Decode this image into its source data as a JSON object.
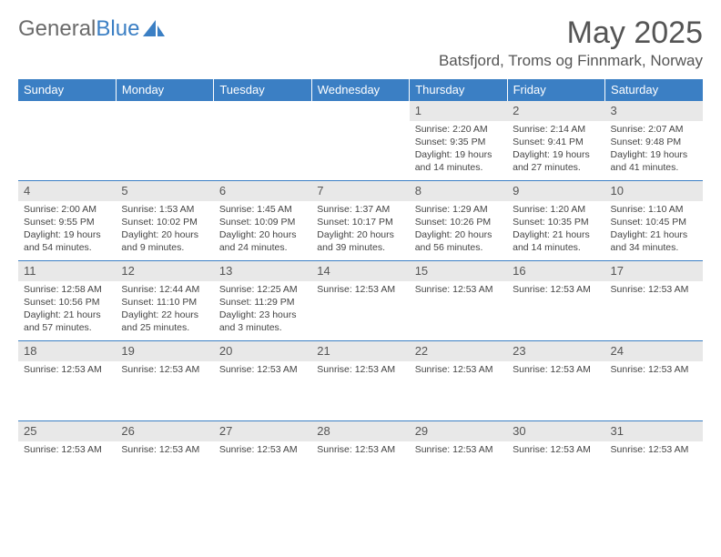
{
  "brand": {
    "part1": "General",
    "part2": "Blue"
  },
  "title": "May 2025",
  "location": "Batsfjord, Troms og Finnmark, Norway",
  "weekdays": [
    "Sunday",
    "Monday",
    "Tuesday",
    "Wednesday",
    "Thursday",
    "Friday",
    "Saturday"
  ],
  "colors": {
    "accent": "#3b7fc4",
    "header_text": "#ffffff",
    "daybar": "#e8e8e8"
  },
  "weeks": [
    [
      {
        "num": "",
        "lines": []
      },
      {
        "num": "",
        "lines": []
      },
      {
        "num": "",
        "lines": []
      },
      {
        "num": "",
        "lines": []
      },
      {
        "num": "1",
        "lines": [
          "Sunrise: 2:20 AM",
          "Sunset: 9:35 PM",
          "Daylight: 19 hours and 14 minutes."
        ]
      },
      {
        "num": "2",
        "lines": [
          "Sunrise: 2:14 AM",
          "Sunset: 9:41 PM",
          "Daylight: 19 hours and 27 minutes."
        ]
      },
      {
        "num": "3",
        "lines": [
          "Sunrise: 2:07 AM",
          "Sunset: 9:48 PM",
          "Daylight: 19 hours and 41 minutes."
        ]
      }
    ],
    [
      {
        "num": "4",
        "lines": [
          "Sunrise: 2:00 AM",
          "Sunset: 9:55 PM",
          "Daylight: 19 hours and 54 minutes."
        ]
      },
      {
        "num": "5",
        "lines": [
          "Sunrise: 1:53 AM",
          "Sunset: 10:02 PM",
          "Daylight: 20 hours and 9 minutes."
        ]
      },
      {
        "num": "6",
        "lines": [
          "Sunrise: 1:45 AM",
          "Sunset: 10:09 PM",
          "Daylight: 20 hours and 24 minutes."
        ]
      },
      {
        "num": "7",
        "lines": [
          "Sunrise: 1:37 AM",
          "Sunset: 10:17 PM",
          "Daylight: 20 hours and 39 minutes."
        ]
      },
      {
        "num": "8",
        "lines": [
          "Sunrise: 1:29 AM",
          "Sunset: 10:26 PM",
          "Daylight: 20 hours and 56 minutes."
        ]
      },
      {
        "num": "9",
        "lines": [
          "Sunrise: 1:20 AM",
          "Sunset: 10:35 PM",
          "Daylight: 21 hours and 14 minutes."
        ]
      },
      {
        "num": "10",
        "lines": [
          "Sunrise: 1:10 AM",
          "Sunset: 10:45 PM",
          "Daylight: 21 hours and 34 minutes."
        ]
      }
    ],
    [
      {
        "num": "11",
        "lines": [
          "Sunrise: 12:58 AM",
          "Sunset: 10:56 PM",
          "Daylight: 21 hours and 57 minutes."
        ]
      },
      {
        "num": "12",
        "lines": [
          "Sunrise: 12:44 AM",
          "Sunset: 11:10 PM",
          "Daylight: 22 hours and 25 minutes."
        ]
      },
      {
        "num": "13",
        "lines": [
          "Sunrise: 12:25 AM",
          "Sunset: 11:29 PM",
          "Daylight: 23 hours and 3 minutes."
        ]
      },
      {
        "num": "14",
        "lines": [
          "Sunrise: 12:53 AM"
        ]
      },
      {
        "num": "15",
        "lines": [
          "Sunrise: 12:53 AM"
        ]
      },
      {
        "num": "16",
        "lines": [
          "Sunrise: 12:53 AM"
        ]
      },
      {
        "num": "17",
        "lines": [
          "Sunrise: 12:53 AM"
        ]
      }
    ],
    [
      {
        "num": "18",
        "lines": [
          "Sunrise: 12:53 AM"
        ]
      },
      {
        "num": "19",
        "lines": [
          "Sunrise: 12:53 AM"
        ]
      },
      {
        "num": "20",
        "lines": [
          "Sunrise: 12:53 AM"
        ]
      },
      {
        "num": "21",
        "lines": [
          "Sunrise: 12:53 AM"
        ]
      },
      {
        "num": "22",
        "lines": [
          "Sunrise: 12:53 AM"
        ]
      },
      {
        "num": "23",
        "lines": [
          "Sunrise: 12:53 AM"
        ]
      },
      {
        "num": "24",
        "lines": [
          "Sunrise: 12:53 AM"
        ]
      }
    ],
    [
      {
        "num": "25",
        "lines": [
          "Sunrise: 12:53 AM"
        ]
      },
      {
        "num": "26",
        "lines": [
          "Sunrise: 12:53 AM"
        ]
      },
      {
        "num": "27",
        "lines": [
          "Sunrise: 12:53 AM"
        ]
      },
      {
        "num": "28",
        "lines": [
          "Sunrise: 12:53 AM"
        ]
      },
      {
        "num": "29",
        "lines": [
          "Sunrise: 12:53 AM"
        ]
      },
      {
        "num": "30",
        "lines": [
          "Sunrise: 12:53 AM"
        ]
      },
      {
        "num": "31",
        "lines": [
          "Sunrise: 12:53 AM"
        ]
      }
    ]
  ]
}
